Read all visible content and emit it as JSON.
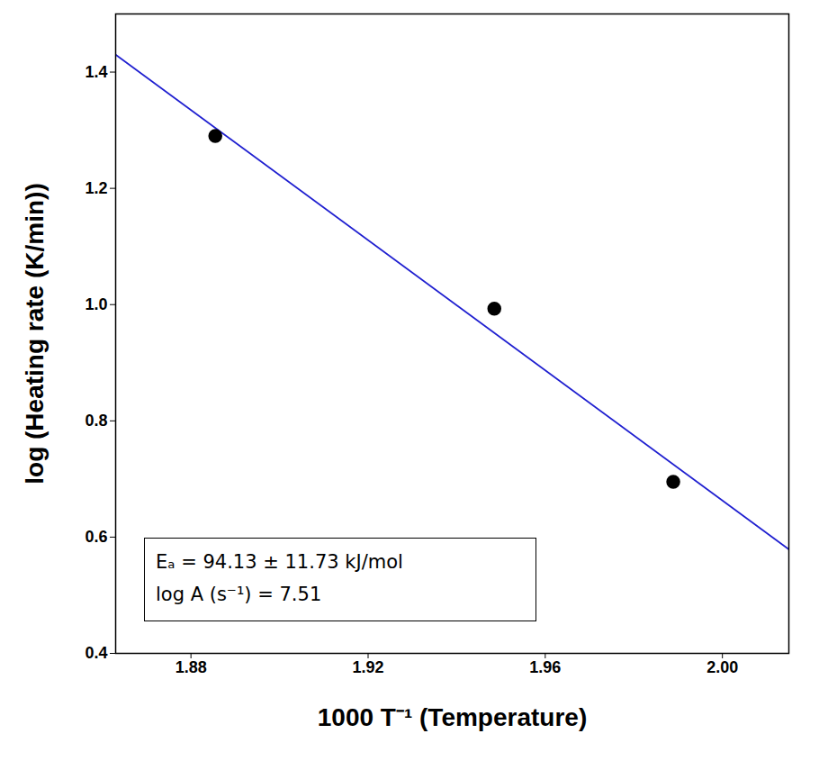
{
  "chart_data": {
    "type": "scatter",
    "x_label": "1000 T⁻¹ (Temperature)",
    "y_label": "log (Heating rate (K/min))",
    "series": [
      {
        "type": "scatter",
        "color": "#000000",
        "marker": "circle",
        "x": [
          1.8855,
          1.9485,
          1.9889
        ],
        "values": [
          1.29,
          0.993,
          0.695
        ]
      },
      {
        "type": "line",
        "color": "#2020d0",
        "line_style": "solid",
        "x": [
          1.863,
          2.015
        ],
        "values": [
          1.43,
          0.579
        ]
      }
    ],
    "annotations": [
      "Eₐ = 94.13 ± 11.73 kJ/mol",
      "log A (s⁻¹) = 7.51"
    ],
    "xlim": [
      1.863,
      2.015
    ],
    "xticks": [
      1.88,
      1.92,
      1.96,
      {
        "value": 2,
        "label": "2.00"
      }
    ],
    "ylim": [
      0.4,
      1.5
    ],
    "yticks": [
      0.4,
      0.6,
      0.8,
      {
        "value": 1,
        "label": "1.0"
      },
      1.2,
      1.4
    ],
    "grid": false
  }
}
